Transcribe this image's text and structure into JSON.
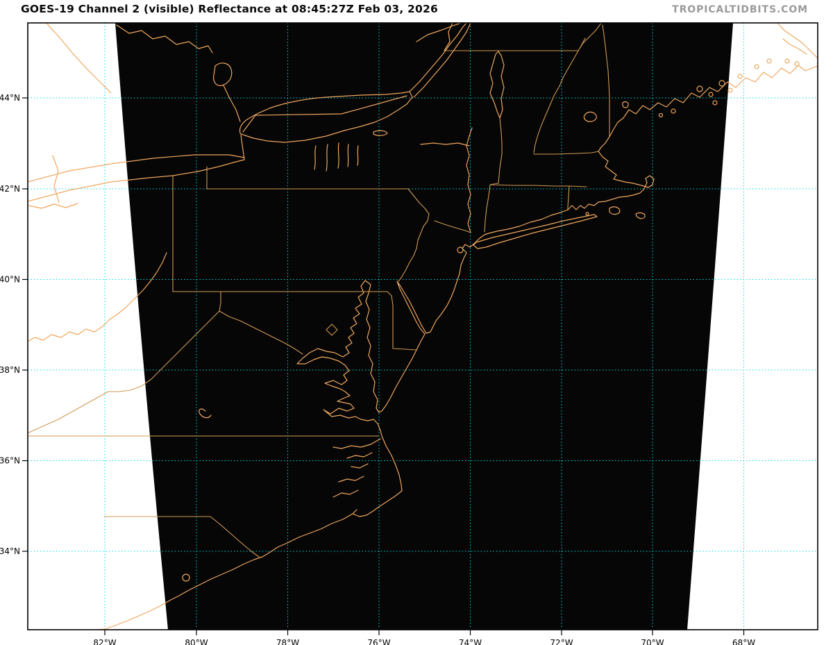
{
  "header": {
    "title": "GOES-19 Channel 2 (visible) Reflectance at 08:45:27Z Feb 03, 2026",
    "brand": "TROPICALTIDBITS.COM"
  },
  "map": {
    "lat_ticks": [
      "44°N",
      "42°N",
      "40°N",
      "38°N",
      "36°N",
      "34°N"
    ],
    "lon_ticks": [
      "82°W",
      "80°W",
      "78°W",
      "76°W",
      "74°W",
      "72°W",
      "70°W",
      "68°W"
    ],
    "colors": {
      "coastline": "#efa75f",
      "state_borders": "#d09a55",
      "gridline": "#00d9e8",
      "satellite_swath": "#060606",
      "background": "#ffffff",
      "axis": "#000000",
      "brand_text": "#9a9a9a"
    }
  }
}
